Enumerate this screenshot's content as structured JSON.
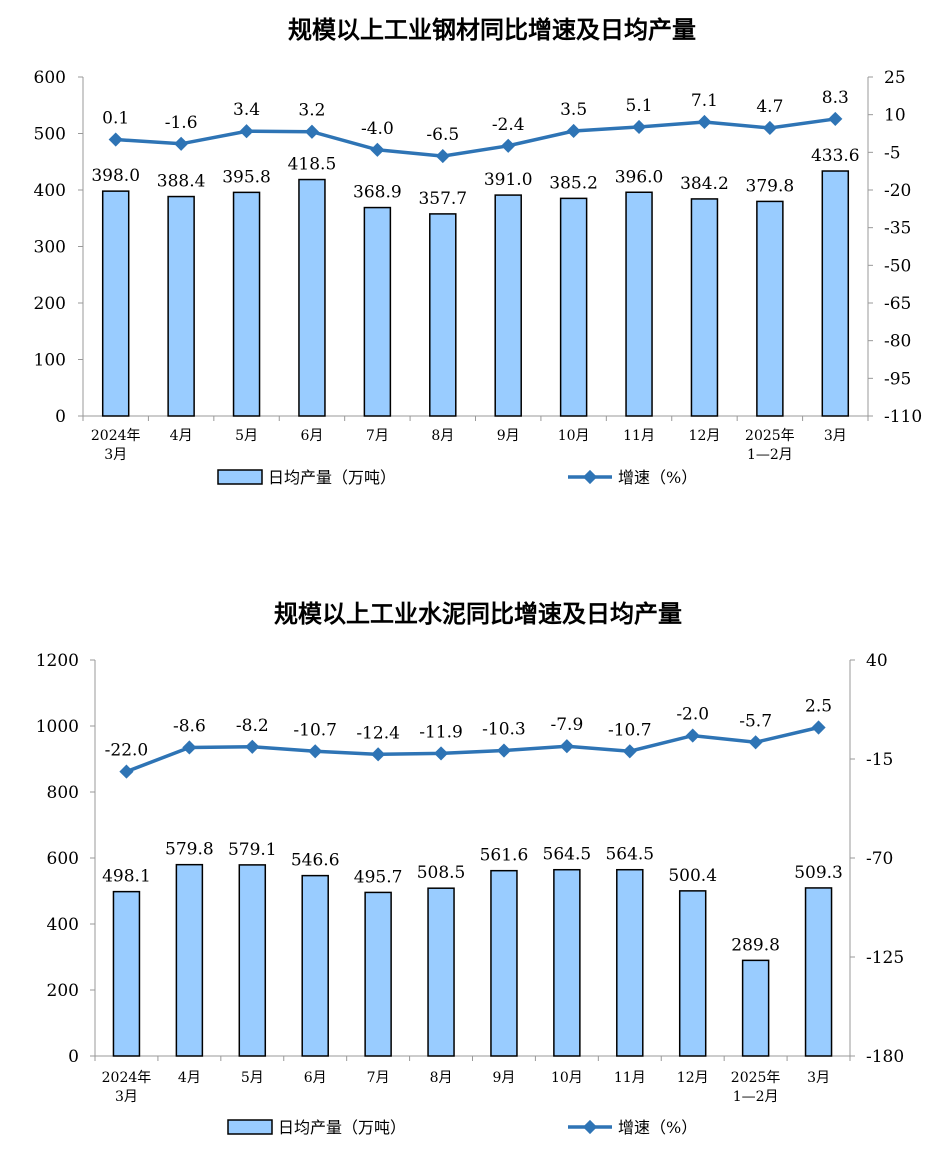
{
  "chart_data": [
    {
      "type": "bar",
      "title": "规模以上工业钢材同比增速及日均产量",
      "categories": [
        [
          "2024年",
          "3月"
        ],
        [
          "4月"
        ],
        [
          "5月"
        ],
        [
          "6月"
        ],
        [
          "7月"
        ],
        [
          "8月"
        ],
        [
          "9月"
        ],
        [
          "10月"
        ],
        [
          "11月"
        ],
        [
          "12月"
        ],
        [
          "2025年",
          "1—2月"
        ],
        [
          "3月"
        ]
      ],
      "series": [
        {
          "name": "日均产量（万吨）",
          "type": "bar",
          "axis": "left",
          "values": [
            398.0,
            388.4,
            395.8,
            418.5,
            368.9,
            357.7,
            391.0,
            385.2,
            396.0,
            384.2,
            379.8,
            433.6
          ],
          "labels": [
            "398.0",
            "388.4",
            "395.8",
            "418.5",
            "368.9",
            "357.7",
            "391.0",
            "385.2",
            "396.0",
            "384.2",
            "379.8",
            "433.6"
          ]
        },
        {
          "name": "增速（%）",
          "type": "line",
          "axis": "right",
          "values": [
            0.1,
            -1.6,
            3.4,
            3.2,
            -4.0,
            -6.5,
            -2.4,
            3.5,
            5.1,
            7.1,
            4.7,
            8.3
          ],
          "labels": [
            "0.1",
            "-1.6",
            "3.4",
            "3.2",
            "-4.0",
            "-6.5",
            "-2.4",
            "3.5",
            "5.1",
            "7.1",
            "4.7",
            "8.3"
          ]
        }
      ],
      "y_left": {
        "min": 0,
        "max": 600,
        "ticks": [
          0,
          100,
          200,
          300,
          400,
          500,
          600
        ],
        "tick_labels": [
          "0",
          "100",
          "200",
          "300",
          "400",
          "500",
          "600"
        ]
      },
      "y_right": {
        "min": -110,
        "max": 25,
        "ticks": [
          -110,
          -95,
          -80,
          -65,
          -50,
          -35,
          -20,
          -5,
          10,
          25
        ],
        "tick_labels": [
          "-110",
          "-95",
          "-80",
          "-65",
          "-50",
          "-35",
          "-20",
          "-5",
          "10",
          "25"
        ]
      },
      "grid": false,
      "legend_position": "bottom"
    },
    {
      "type": "bar",
      "title": "规模以上工业水泥同比增速及日均产量",
      "categories": [
        [
          "2024年",
          "3月"
        ],
        [
          "4月"
        ],
        [
          "5月"
        ],
        [
          "6月"
        ],
        [
          "7月"
        ],
        [
          "8月"
        ],
        [
          "9月"
        ],
        [
          "10月"
        ],
        [
          "11月"
        ],
        [
          "12月"
        ],
        [
          "2025年",
          "1—2月"
        ],
        [
          "3月"
        ]
      ],
      "series": [
        {
          "name": "日均产量（万吨）",
          "type": "bar",
          "axis": "left",
          "values": [
            498.1,
            579.8,
            579.1,
            546.6,
            495.7,
            508.5,
            561.6,
            564.5,
            564.5,
            500.4,
            289.8,
            509.3
          ],
          "labels": [
            "498.1",
            "579.8",
            "579.1",
            "546.6",
            "495.7",
            "508.5",
            "561.6",
            "564.5",
            "564.5",
            "500.4",
            "289.8",
            "509.3"
          ]
        },
        {
          "name": "增速（%）",
          "type": "line",
          "axis": "right",
          "values": [
            -22.0,
            -8.6,
            -8.2,
            -10.7,
            -12.4,
            -11.9,
            -10.3,
            -7.9,
            -10.7,
            -2.0,
            -5.7,
            2.5
          ],
          "labels": [
            "-22.0",
            "-8.6",
            "-8.2",
            "-10.7",
            "-12.4",
            "-11.9",
            "-10.3",
            "-7.9",
            "-10.7",
            "-2.0",
            "-5.7",
            "2.5"
          ]
        }
      ],
      "y_left": {
        "min": 0,
        "max": 1200,
        "ticks": [
          0,
          200,
          400,
          600,
          800,
          1000,
          1200
        ],
        "tick_labels": [
          "0",
          "200",
          "400",
          "600",
          "800",
          "1000",
          "1200"
        ]
      },
      "y_right": {
        "min": -180,
        "max": 40,
        "ticks": [
          -180,
          -125,
          -70,
          -15,
          40
        ],
        "tick_labels": [
          "-180",
          "-125",
          "-70",
          "-15",
          "40"
        ]
      },
      "grid": false,
      "legend_position": "bottom"
    }
  ]
}
